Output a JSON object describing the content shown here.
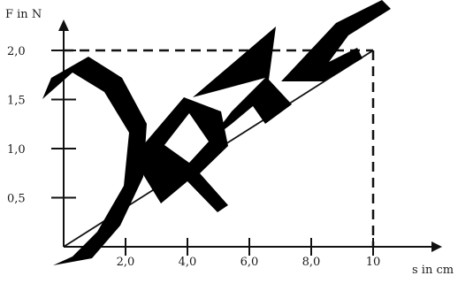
{
  "chart_data": {
    "type": "line",
    "xlabel": "s in cm",
    "ylabel": "F in N",
    "x_tick_labels": [
      "2,0",
      "4,0",
      "6,0",
      "8,0",
      "10"
    ],
    "y_tick_labels": [
      "0,5",
      "1,0",
      "1,5",
      "2,0"
    ],
    "x_ticks": [
      2,
      4,
      6,
      8,
      10
    ],
    "y_ticks": [
      0.5,
      1.0,
      1.5,
      2.0
    ],
    "xlim": [
      0,
      12
    ],
    "ylim": [
      0,
      2.5
    ],
    "series": [
      {
        "x": [
          0,
          10
        ],
        "y": [
          0,
          2.0
        ]
      }
    ],
    "guide_point": {
      "x": 10,
      "y": 2.0
    },
    "grid": false,
    "legend": "none"
  },
  "watermark": {
    "text": "DRAFT",
    "color": "#000000"
  }
}
